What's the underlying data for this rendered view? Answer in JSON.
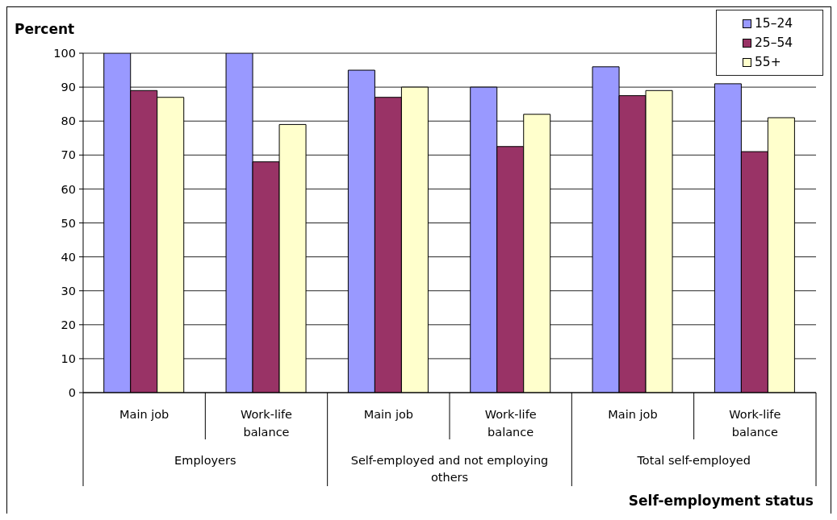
{
  "chart_data": {
    "type": "bar",
    "xlabel": "Self-employment status",
    "ylabel": "Percent",
    "categories": [
      "Main job",
      "Work-life balance",
      "Main job",
      "Work-life balance",
      "Main job",
      "Work-life balance"
    ],
    "series": [
      {
        "name": "15–24",
        "color": "#9999ff",
        "values": [
          100,
          100,
          95,
          90,
          96,
          91
        ]
      },
      {
        "name": "25–54",
        "color": "#993366",
        "values": [
          89,
          68,
          87,
          72.5,
          87.5,
          71
        ]
      },
      {
        "name": "55+",
        "color": "#ffffcc",
        "values": [
          87,
          79,
          90,
          82,
          89,
          81
        ]
      }
    ],
    "ylim": [
      0,
      100
    ],
    "yticks": [
      0,
      10,
      20,
      30,
      40,
      50,
      60,
      70,
      80,
      90,
      100
    ],
    "grid": "y",
    "legend": "top right",
    "annotations": [
      "Employers",
      "Self-employed and not employing others",
      "Total self-employed"
    ]
  }
}
